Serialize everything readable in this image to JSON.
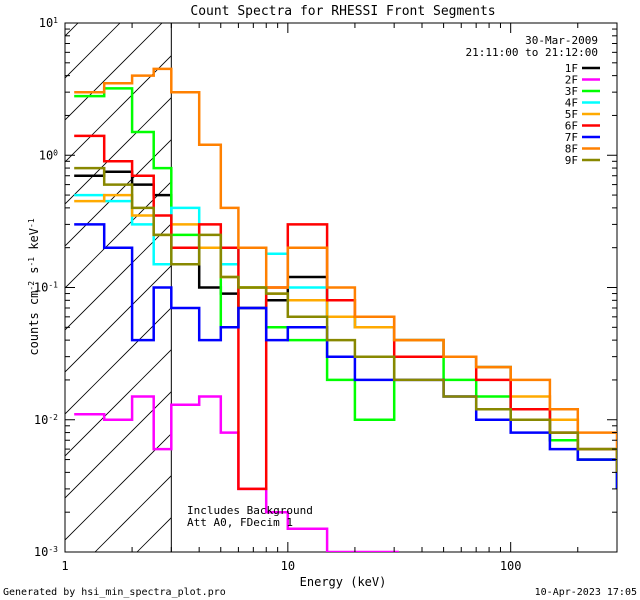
{
  "chart_data": {
    "type": "line",
    "title": "Count Spectra for RHESSI Front Segments",
    "xlabel": "Energy (keV)",
    "ylabel": "counts cm-2 s-1 keV-1",
    "ylabel_parts": {
      "base": "counts cm",
      "exp1": "-2",
      "mid": " s",
      "exp2": "-1",
      "end": " keV",
      "exp3": "-1"
    },
    "x_scale": "log",
    "y_scale": "log",
    "xlim": [
      1,
      300
    ],
    "ylim": [
      0.001,
      10
    ],
    "x_ticks": [
      {
        "value": 1,
        "label": "1"
      },
      {
        "value": 10,
        "label": "10"
      },
      {
        "value": 100,
        "label": "100"
      }
    ],
    "y_ticks": [
      {
        "value": 10,
        "base": "10",
        "exp": "1"
      },
      {
        "value": 1,
        "base": "10",
        "exp": "0"
      },
      {
        "value": 0.1,
        "base": "10",
        "exp": "-1"
      },
      {
        "value": 0.01,
        "base": "10",
        "exp": "-2"
      },
      {
        "value": 0.001,
        "base": "10",
        "exp": "-3"
      }
    ],
    "grid": false,
    "legend_position": "top-right",
    "date": "30-Mar-2009",
    "time_range": "21:11:00 to 21:12:00",
    "annotations": [
      "Includes Background",
      "Att A0, FDecim 1"
    ],
    "hatched_region_xmax": 3,
    "series": [
      {
        "name": "1F",
        "color": "#000000",
        "x": [
          1.1,
          1.5,
          2,
          2.5,
          3,
          4,
          5,
          6,
          8,
          10,
          15,
          20,
          30,
          50,
          70,
          100,
          150,
          200,
          300
        ],
        "y": [
          0.7,
          0.75,
          0.6,
          0.5,
          0.2,
          0.1,
          0.09,
          0.07,
          0.08,
          0.12,
          0.06,
          0.05,
          0.04,
          0.03,
          0.025,
          0.012,
          0.007,
          0.005,
          0.003
        ]
      },
      {
        "name": "2F",
        "color": "#ff00ff",
        "x": [
          1.1,
          1.5,
          2,
          2.5,
          3,
          4,
          5,
          6,
          8,
          10,
          15,
          20,
          30
        ],
        "y": [
          0.011,
          0.01,
          0.015,
          0.006,
          0.013,
          0.015,
          0.008,
          0.003,
          0.002,
          0.0015,
          0.001,
          0.001,
          0.001
        ]
      },
      {
        "name": "3F",
        "color": "#00ff00",
        "x": [
          1.1,
          1.5,
          2,
          2.5,
          3,
          4,
          5,
          6,
          8,
          10,
          15,
          20,
          30,
          50,
          70,
          100,
          150,
          200,
          300
        ],
        "y": [
          2.8,
          3.2,
          1.5,
          0.8,
          0.25,
          0.2,
          0.05,
          0.1,
          0.05,
          0.04,
          0.02,
          0.01,
          0.03,
          0.02,
          0.015,
          0.01,
          0.007,
          0.005,
          0.003
        ]
      },
      {
        "name": "4F",
        "color": "#00ffff",
        "x": [
          1.1,
          1.5,
          2,
          2.5,
          3,
          4,
          5,
          6,
          8,
          10,
          15,
          20,
          30,
          50,
          70,
          100,
          150,
          200,
          300
        ],
        "y": [
          0.5,
          0.45,
          0.3,
          0.15,
          0.4,
          0.2,
          0.15,
          0.2,
          0.18,
          0.1,
          0.06,
          0.05,
          0.04,
          0.03,
          0.025,
          0.012,
          0.01,
          0.006,
          0.004
        ]
      },
      {
        "name": "5F",
        "color": "#ffaa00",
        "x": [
          1.1,
          1.5,
          2,
          2.5,
          3,
          4,
          5,
          6,
          8,
          10,
          15,
          20,
          30,
          50,
          70,
          100,
          150,
          200,
          300
        ],
        "y": [
          0.45,
          0.5,
          0.35,
          0.25,
          0.3,
          0.2,
          0.12,
          0.1,
          0.09,
          0.08,
          0.06,
          0.05,
          0.04,
          0.03,
          0.025,
          0.015,
          0.01,
          0.006,
          0.004
        ]
      },
      {
        "name": "6F",
        "color": "#ff0000",
        "x": [
          1.1,
          1.5,
          2,
          2.5,
          3,
          4,
          5,
          6,
          8,
          10,
          15,
          20,
          30,
          50,
          70,
          100,
          150,
          200,
          300
        ],
        "y": [
          1.4,
          0.9,
          0.7,
          0.35,
          0.2,
          0.3,
          0.2,
          0.003,
          0.1,
          0.3,
          0.08,
          0.06,
          0.03,
          0.03,
          0.02,
          0.012,
          0.008,
          0.006,
          0.004
        ]
      },
      {
        "name": "7F",
        "color": "#0000ff",
        "x": [
          1.1,
          1.5,
          2,
          2.5,
          3,
          4,
          5,
          6,
          8,
          10,
          15,
          20,
          30,
          50,
          70,
          100,
          150,
          200,
          300
        ],
        "y": [
          0.3,
          0.2,
          0.04,
          0.1,
          0.07,
          0.04,
          0.05,
          0.07,
          0.04,
          0.05,
          0.03,
          0.02,
          0.02,
          0.015,
          0.01,
          0.008,
          0.006,
          0.005,
          0.003
        ]
      },
      {
        "name": "8F",
        "color": "#ff8000",
        "x": [
          1.1,
          1.5,
          2,
          2.5,
          3,
          4,
          5,
          6,
          8,
          10,
          15,
          20,
          30,
          50,
          70,
          100,
          150,
          200,
          300
        ],
        "y": [
          3,
          3.5,
          4,
          4.5,
          3,
          1.2,
          0.4,
          0.2,
          0.1,
          0.2,
          0.1,
          0.06,
          0.04,
          0.03,
          0.025,
          0.02,
          0.012,
          0.008,
          0.005
        ]
      },
      {
        "name": "9F",
        "color": "#888800",
        "x": [
          1.1,
          1.5,
          2,
          2.5,
          3,
          4,
          5,
          6,
          8,
          10,
          15,
          20,
          30,
          50,
          70,
          100,
          150,
          200,
          300
        ],
        "y": [
          0.8,
          0.6,
          0.4,
          0.25,
          0.15,
          0.25,
          0.12,
          0.1,
          0.09,
          0.06,
          0.04,
          0.03,
          0.02,
          0.015,
          0.012,
          0.01,
          0.008,
          0.006,
          0.004
        ]
      }
    ]
  },
  "footer": {
    "generated_by": "Generated by hsi_min_spectra_plot.pro",
    "timestamp": "10-Apr-2023 17:05"
  }
}
